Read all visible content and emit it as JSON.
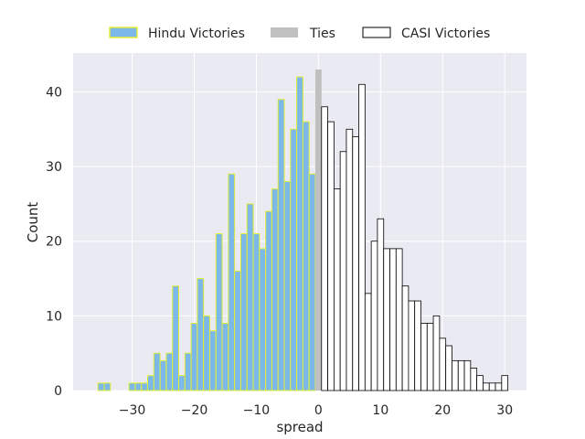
{
  "chart_data": {
    "type": "bar",
    "title": "",
    "xlabel": "spread",
    "ylabel": "Count",
    "xlim": [
      -39.5,
      33.5
    ],
    "ylim": [
      0,
      45.2
    ],
    "xticks": [
      -30,
      -20,
      -10,
      0,
      10,
      20,
      30
    ],
    "yticks": [
      0,
      10,
      20,
      30,
      40
    ],
    "xtick_labels": [
      "−30",
      "−20",
      "−10",
      "0",
      "10",
      "20",
      "30"
    ],
    "ytick_labels": [
      "0",
      "10",
      "20",
      "30",
      "40"
    ],
    "grid": true,
    "legend_position": "top-center",
    "colors": {
      "hindu_fill": "#7cb9e8",
      "hindu_edge": "#e3ed38",
      "ties_fill": "#c0c0c0",
      "casi_fill": "#ffffff",
      "casi_edge": "#000000",
      "plot_background": "#eaeaf2",
      "grid": "#ffffff"
    },
    "series": [
      {
        "name": "Hindu Victories",
        "bins": [
          {
            "spread": -35,
            "count": 1
          },
          {
            "spread": -34,
            "count": 1
          },
          {
            "spread": -30,
            "count": 1
          },
          {
            "spread": -29,
            "count": 1
          },
          {
            "spread": -28,
            "count": 1
          },
          {
            "spread": -27,
            "count": 2
          },
          {
            "spread": -26,
            "count": 5
          },
          {
            "spread": -25,
            "count": 4
          },
          {
            "spread": -24,
            "count": 5
          },
          {
            "spread": -23,
            "count": 14
          },
          {
            "spread": -22,
            "count": 2
          },
          {
            "spread": -21,
            "count": 5
          },
          {
            "spread": -20,
            "count": 9
          },
          {
            "spread": -19,
            "count": 15
          },
          {
            "spread": -18,
            "count": 10
          },
          {
            "spread": -17,
            "count": 8
          },
          {
            "spread": -16,
            "count": 21
          },
          {
            "spread": -15,
            "count": 9
          },
          {
            "spread": -14,
            "count": 29
          },
          {
            "spread": -13,
            "count": 16
          },
          {
            "spread": -12,
            "count": 21
          },
          {
            "spread": -11,
            "count": 25
          },
          {
            "spread": -10,
            "count": 21
          },
          {
            "spread": -9,
            "count": 19
          },
          {
            "spread": -8,
            "count": 24
          },
          {
            "spread": -7,
            "count": 27
          },
          {
            "spread": -6,
            "count": 39
          },
          {
            "spread": -5,
            "count": 28
          },
          {
            "spread": -4,
            "count": 35
          },
          {
            "spread": -3,
            "count": 42
          },
          {
            "spread": -2,
            "count": 36
          },
          {
            "spread": -1,
            "count": 29
          }
        ]
      },
      {
        "name": "Ties",
        "bins": [
          {
            "spread": 0,
            "count": 43
          }
        ]
      },
      {
        "name": "CASI Victories",
        "bins": [
          {
            "spread": 1,
            "count": 38
          },
          {
            "spread": 2,
            "count": 36
          },
          {
            "spread": 3,
            "count": 27
          },
          {
            "spread": 4,
            "count": 32
          },
          {
            "spread": 5,
            "count": 35
          },
          {
            "spread": 6,
            "count": 34
          },
          {
            "spread": 7,
            "count": 41
          },
          {
            "spread": 8,
            "count": 13
          },
          {
            "spread": 9,
            "count": 20
          },
          {
            "spread": 10,
            "count": 23
          },
          {
            "spread": 11,
            "count": 19
          },
          {
            "spread": 12,
            "count": 19
          },
          {
            "spread": 13,
            "count": 19
          },
          {
            "spread": 14,
            "count": 14
          },
          {
            "spread": 15,
            "count": 12
          },
          {
            "spread": 16,
            "count": 12
          },
          {
            "spread": 17,
            "count": 9
          },
          {
            "spread": 18,
            "count": 9
          },
          {
            "spread": 19,
            "count": 10
          },
          {
            "spread": 20,
            "count": 7
          },
          {
            "spread": 21,
            "count": 6
          },
          {
            "spread": 22,
            "count": 4
          },
          {
            "spread": 23,
            "count": 4
          },
          {
            "spread": 24,
            "count": 4
          },
          {
            "spread": 25,
            "count": 3
          },
          {
            "spread": 26,
            "count": 2
          },
          {
            "spread": 27,
            "count": 1
          },
          {
            "spread": 28,
            "count": 1
          },
          {
            "spread": 29,
            "count": 1
          },
          {
            "spread": 30,
            "count": 2
          }
        ]
      }
    ]
  }
}
